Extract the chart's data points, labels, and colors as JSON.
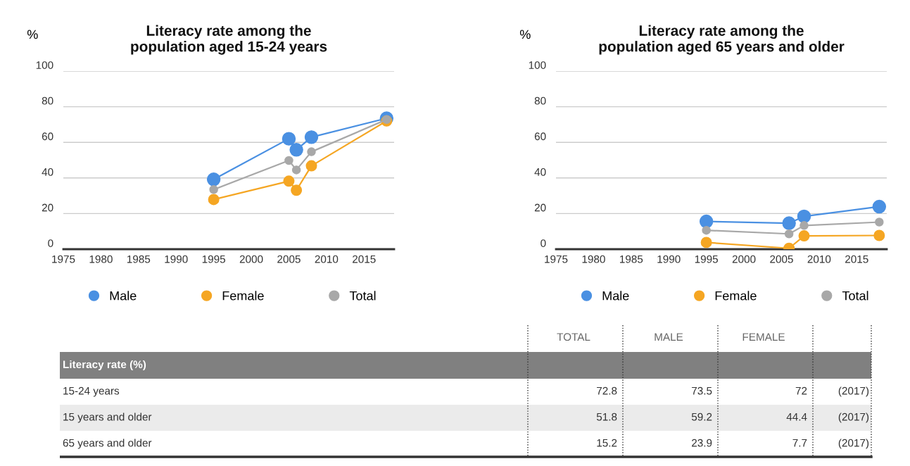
{
  "chart_data": [
    {
      "type": "line",
      "title": "Literacy rate among the\npopulation aged 15-24 years",
      "ylabel": "%",
      "xlim": [
        1975,
        2019
      ],
      "xticks": [
        1975,
        1980,
        1985,
        1990,
        1995,
        2000,
        2005,
        2010,
        2015
      ],
      "ylim": [
        0,
        100
      ],
      "yticks": [
        0,
        20,
        40,
        60,
        80,
        100
      ],
      "grid": "y",
      "legend": "bottom",
      "marker": "circle",
      "line_style": "solid",
      "x": [
        1995,
        2005,
        2006,
        2008,
        2018
      ],
      "series": [
        {
          "name": "Male",
          "color": "#4a90e2",
          "values": [
            39.2,
            62.0,
            55.8,
            62.9,
            73.5
          ]
        },
        {
          "name": "Female",
          "color": "#f5a623",
          "values": [
            27.9,
            38.2,
            33.1,
            46.8,
            72
          ]
        },
        {
          "name": "Total",
          "color": "#a8a8a8",
          "values": [
            33.5,
            49.8,
            44.5,
            54.7,
            72.8
          ]
        }
      ]
    },
    {
      "type": "line",
      "title": "Literacy rate among the\npopulation aged 65 years and older",
      "ylabel": "%",
      "xlim": [
        1975,
        2019
      ],
      "xticks": [
        1975,
        1980,
        1985,
        1990,
        1995,
        2000,
        2005,
        2010,
        2015
      ],
      "ylim": [
        0,
        100
      ],
      "yticks": [
        0,
        20,
        40,
        60,
        80,
        100
      ],
      "grid": "y",
      "legend": "bottom",
      "marker": "circle",
      "line_style": "solid",
      "x": [
        1995,
        2006,
        2008,
        2018
      ],
      "series": [
        {
          "name": "Male",
          "color": "#4a90e2",
          "values": [
            15.6,
            14.6,
            18.4,
            23.9
          ]
        },
        {
          "name": "Female",
          "color": "#f5a623",
          "values": [
            3.8,
            0.5,
            7.5,
            7.7
          ]
        },
        {
          "name": "Total",
          "color": "#a8a8a8",
          "values": [
            10.6,
            8.6,
            13.3,
            15.2
          ]
        }
      ]
    },
    {
      "type": "other",
      "title": "Literacy rate (%)",
      "categories": [
        "TOTAL",
        "MALE",
        "FEMALE"
      ],
      "data_labels": true,
      "series": [
        {
          "name": "15-24 years",
          "values": [
            72.8,
            73.5,
            72
          ]
        },
        {
          "name": "15 years and older",
          "values": [
            51.8,
            59.2,
            44.4
          ]
        },
        {
          "name": "65 years and older",
          "values": [
            15.2,
            23.9,
            7.7
          ]
        }
      ],
      "annotations": [
        "(2017)",
        "(2017)",
        "(2017)"
      ]
    }
  ]
}
